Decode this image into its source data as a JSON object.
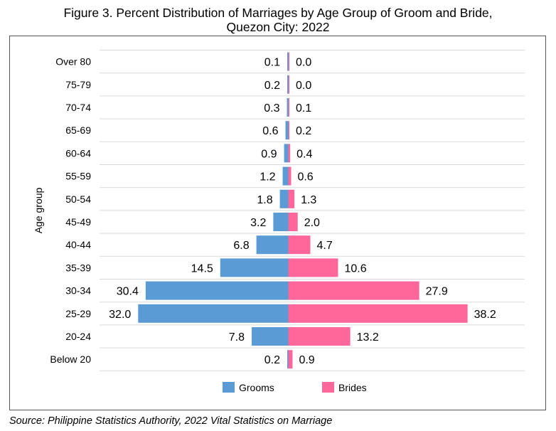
{
  "title_line1": "Figure 3. Percent Distribution of Marriages by Age Group of Groom and Bride,",
  "title_line2": "Quezon City: 2022",
  "source": "Source: Philippine Statistics Authority, 2022 Vital Statistics on Marriage",
  "chart_data": {
    "type": "bar",
    "orientation": "horizontal-butterfly",
    "ylabel": "Age group",
    "categories": [
      "Over 80",
      "75-79",
      "70-74",
      "65-69",
      "60-64",
      "55-59",
      "50-54",
      "45-49",
      "40-44",
      "35-39",
      "30-34",
      "25-29",
      "20-24",
      "Below 20"
    ],
    "series": [
      {
        "name": "Grooms",
        "color": "#5b9bd5",
        "values": [
          0.1,
          0.2,
          0.3,
          0.6,
          0.9,
          1.2,
          1.8,
          3.2,
          6.8,
          14.5,
          30.4,
          32.0,
          7.8,
          0.2
        ],
        "labels": [
          "0.1",
          "0.2",
          "0.3",
          "0.6",
          "0.9",
          "1.2",
          "1.8",
          "3.2",
          "6.8",
          "14.5",
          "30.4",
          "32.0",
          "7.8",
          "0.2"
        ]
      },
      {
        "name": "Brides",
        "color": "#ff6699",
        "values": [
          0.0,
          0.0,
          0.1,
          0.2,
          0.4,
          0.6,
          1.3,
          2.0,
          4.7,
          10.6,
          27.9,
          38.2,
          13.2,
          0.9
        ],
        "labels": [
          "0.0",
          "0.0",
          "0.1",
          "0.2",
          "0.4",
          "0.6",
          "1.3",
          "2.0",
          "4.7",
          "10.6",
          "27.9",
          "38.2",
          "13.2",
          "0.9"
        ]
      }
    ],
    "legend_position": "bottom",
    "grid": true
  }
}
